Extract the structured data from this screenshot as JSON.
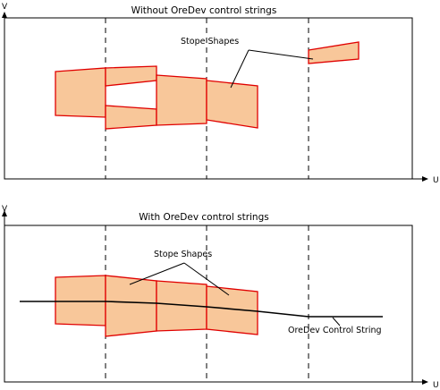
{
  "colors": {
    "stope_fill": "#f8c79a",
    "stope_stroke": "#e00000",
    "line": "#000000",
    "background": "#ffffff"
  },
  "top_panel": {
    "title": "Without OreDev control strings",
    "y_axis_label": "V",
    "x_axis_label": "U",
    "annotation": "Stope Shapes"
  },
  "bottom_panel": {
    "title": "With OreDev control strings",
    "y_axis_label": "V",
    "x_axis_label": "U",
    "annotation_stopes": "Stope Shapes",
    "annotation_string": "OreDev Control String"
  }
}
